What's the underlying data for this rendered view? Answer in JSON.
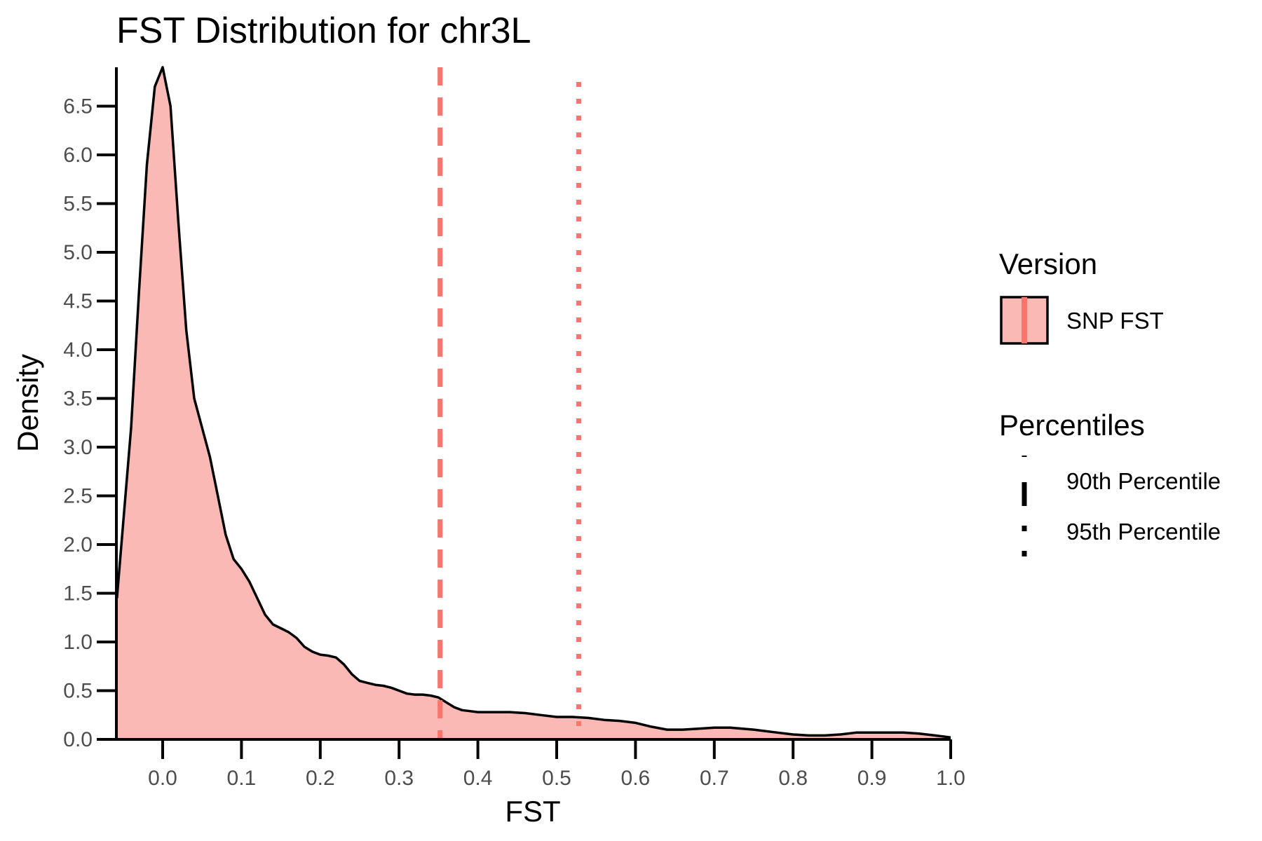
{
  "chart_data": {
    "type": "area",
    "title": "FST Distribution for chr3L",
    "xlabel": "FST",
    "ylabel": "Density",
    "xlim": [
      -0.058,
      1.0
    ],
    "ylim": [
      0,
      6.9
    ],
    "x_ticks": [
      "0.0",
      "0.1",
      "0.2",
      "0.3",
      "0.4",
      "0.5",
      "0.6",
      "0.7",
      "0.8",
      "0.9",
      "1.0"
    ],
    "y_ticks": [
      "0.0",
      "0.5",
      "1.0",
      "1.5",
      "2.0",
      "2.5",
      "3.0",
      "3.5",
      "4.0",
      "4.5",
      "5.0",
      "5.5",
      "6.0",
      "6.5"
    ],
    "grid": false,
    "series": [
      {
        "name": "SNP FST",
        "fill": "#fbb9b5",
        "line": "#000000",
        "x": [
          -0.058,
          -0.04,
          -0.03,
          -0.02,
          -0.01,
          0.0,
          0.01,
          0.02,
          0.03,
          0.04,
          0.05,
          0.06,
          0.07,
          0.08,
          0.09,
          0.1,
          0.11,
          0.12,
          0.13,
          0.14,
          0.15,
          0.16,
          0.17,
          0.18,
          0.19,
          0.2,
          0.21,
          0.22,
          0.23,
          0.24,
          0.25,
          0.26,
          0.27,
          0.28,
          0.29,
          0.3,
          0.31,
          0.32,
          0.33,
          0.34,
          0.35,
          0.36,
          0.37,
          0.38,
          0.39,
          0.4,
          0.42,
          0.44,
          0.46,
          0.48,
          0.5,
          0.52,
          0.54,
          0.56,
          0.58,
          0.6,
          0.62,
          0.64,
          0.66,
          0.68,
          0.7,
          0.72,
          0.75,
          0.78,
          0.8,
          0.82,
          0.84,
          0.86,
          0.88,
          0.9,
          0.92,
          0.94,
          0.96,
          0.98,
          1.0
        ],
        "y": [
          1.45,
          3.2,
          4.6,
          5.9,
          6.7,
          6.9,
          6.5,
          5.3,
          4.2,
          3.5,
          3.2,
          2.9,
          2.5,
          2.1,
          1.85,
          1.75,
          1.62,
          1.45,
          1.28,
          1.18,
          1.14,
          1.1,
          1.04,
          0.95,
          0.9,
          0.87,
          0.86,
          0.84,
          0.77,
          0.67,
          0.6,
          0.58,
          0.56,
          0.55,
          0.53,
          0.5,
          0.47,
          0.46,
          0.46,
          0.45,
          0.43,
          0.38,
          0.33,
          0.3,
          0.29,
          0.28,
          0.28,
          0.28,
          0.27,
          0.25,
          0.23,
          0.23,
          0.22,
          0.2,
          0.19,
          0.17,
          0.13,
          0.1,
          0.1,
          0.11,
          0.12,
          0.12,
          0.1,
          0.07,
          0.05,
          0.04,
          0.04,
          0.05,
          0.07,
          0.07,
          0.07,
          0.07,
          0.06,
          0.04,
          0.02
        ]
      }
    ],
    "percentiles": [
      {
        "name": "90th Percentile",
        "x": 0.352,
        "linetype": "dashed",
        "color": "#f8766d"
      },
      {
        "name": "95th Percentile",
        "x": 0.528,
        "linetype": "dotted",
        "color": "#f8766d"
      }
    ],
    "legend": {
      "placement": "right",
      "version_title": "Version",
      "version_label": "SNP FST",
      "percentiles_title": "Percentiles",
      "percentile_labels": [
        "90th Percentile",
        "95th Percentile"
      ]
    }
  }
}
